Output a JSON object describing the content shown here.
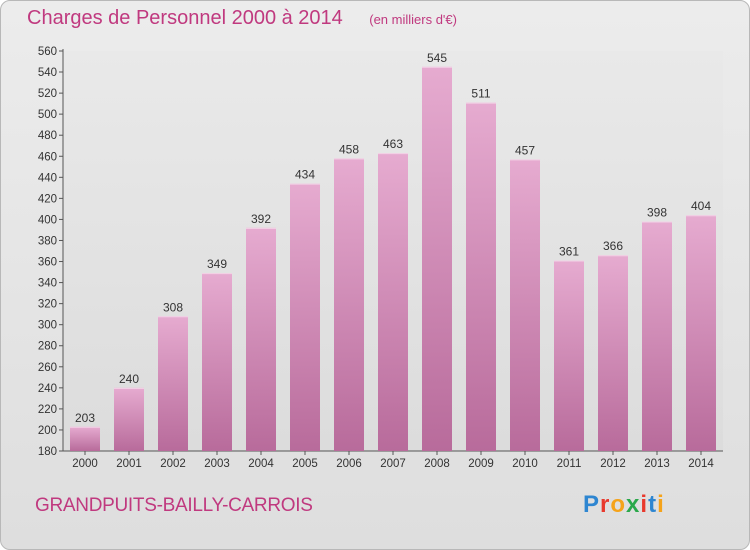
{
  "title": "Charges de Personnel 2000 à 2014",
  "subtitle": "(en milliers d'€)",
  "commune": "GRANDPUITS-BAILLY-CARROIS",
  "logo": {
    "text": "Proxiti",
    "letters": [
      {
        "ch": "P",
        "color": "#2e86d1"
      },
      {
        "ch": "r",
        "color": "#e8392d"
      },
      {
        "ch": "o",
        "color": "#f5a31a"
      },
      {
        "ch": "x",
        "color": "#2aa84a"
      },
      {
        "ch": "i",
        "color": "#e8392d"
      },
      {
        "ch": "t",
        "color": "#2e86d1"
      },
      {
        "ch": "i",
        "color": "#f5a31a"
      }
    ]
  },
  "colors": {
    "bar_top": "#e6abd0",
    "bar_bottom": "#b86b9b",
    "text": "#333333",
    "accent": "#c0397f"
  },
  "chart_data": {
    "type": "bar",
    "categories": [
      "2000",
      "2001",
      "2002",
      "2003",
      "2004",
      "2005",
      "2006",
      "2007",
      "2008",
      "2009",
      "2010",
      "2011",
      "2012",
      "2013",
      "2014"
    ],
    "values": [
      203,
      240,
      308,
      349,
      392,
      434,
      458,
      463,
      545,
      511,
      457,
      361,
      366,
      398,
      404
    ],
    "title": "Charges de Personnel 2000 à 2014",
    "subtitle": "(en milliers d'€)",
    "ylim": [
      180,
      560
    ],
    "yticks": [
      180,
      200,
      220,
      240,
      260,
      280,
      300,
      320,
      340,
      360,
      380,
      400,
      420,
      440,
      460,
      480,
      500,
      520,
      540,
      560
    ],
    "grid": false,
    "data_labels": true
  }
}
